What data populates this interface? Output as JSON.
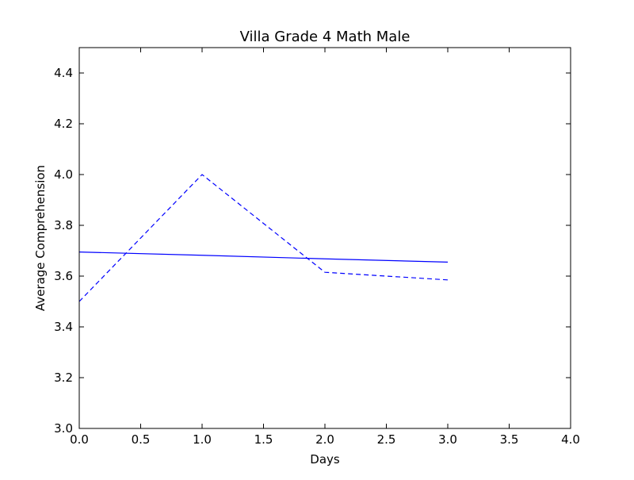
{
  "chart_data": {
    "type": "line",
    "title": "Villa Grade 4 Math Male",
    "xlabel": "Days",
    "ylabel": "Average Comprehension",
    "xlim": [
      0.0,
      4.0
    ],
    "ylim": [
      3.0,
      4.5
    ],
    "x_ticks": [
      "0.0",
      "0.5",
      "1.0",
      "1.5",
      "2.0",
      "2.5",
      "3.0",
      "3.5",
      "4.0"
    ],
    "y_ticks": [
      "3.0",
      "3.2",
      "3.4",
      "3.6",
      "3.8",
      "4.0",
      "4.2",
      "4.4"
    ],
    "grid": false,
    "legend": "none",
    "series": [
      {
        "style": "solid",
        "color": "#0000ff",
        "x": [
          0,
          1,
          2,
          3
        ],
        "y": [
          3.695,
          3.682,
          3.668,
          3.655
        ]
      },
      {
        "style": "dashed",
        "color": "#0000ff",
        "x": [
          0,
          1,
          2,
          3
        ],
        "y": [
          3.5,
          4.0,
          3.615,
          3.585
        ]
      }
    ]
  }
}
